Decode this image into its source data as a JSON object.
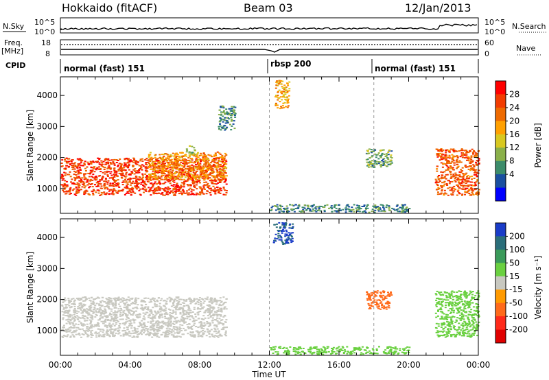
{
  "header": {
    "station": "Hokkaido (fitACF)",
    "beam": "Beam 03",
    "date": "12/Jan/2013"
  },
  "top_panels": {
    "nsky_label": "N.Sky",
    "nsky_ticks": [
      "10^5",
      "10^0"
    ],
    "nsearch_label": "N.Search",
    "nsearch_ticks": [
      "10^5",
      "10^0"
    ],
    "freq_label": "Freq.",
    "freq_unit": "[MHz]",
    "freq_ticks": [
      "18",
      "8"
    ],
    "nave_label": "Nave",
    "nave_ticks": [
      "60",
      "0"
    ],
    "cpid_label": "CPID",
    "cpid_segments": [
      {
        "label": "normal (fast) 151",
        "start": 0,
        "end": 12
      },
      {
        "label": "rbsp 200",
        "start": 12,
        "end": 18
      },
      {
        "label": "normal (fast) 151",
        "start": 18,
        "end": 24
      }
    ]
  },
  "power_colorbar": {
    "label": "Power [dB]",
    "ticks": [
      "28",
      "24",
      "20",
      "16",
      "12",
      "8",
      "4"
    ],
    "colors": [
      "#ff0000",
      "#f23c00",
      "#ee6a00",
      "#ffa000",
      "#d8c820",
      "#8ab04a",
      "#3c8c6a",
      "#1a4fa0",
      "#0000ff"
    ]
  },
  "velocity_colorbar": {
    "label": "Velocity [m s⁻¹]",
    "ticks": [
      "200",
      "100",
      "50",
      "15",
      "-15",
      "-50",
      "-100",
      "-200"
    ],
    "colors": [
      "#1a3cc8",
      "#2a6e7a",
      "#3a9a5a",
      "#6ad040",
      "#c8c8c0",
      "#ff9a00",
      "#ff6a1a",
      "#ff2a1a",
      "#e00000"
    ]
  },
  "chart_data": [
    {
      "type": "heatmap",
      "title": "Power",
      "xlabel": "Time UT",
      "ylabel": "Slant Range [km]",
      "xlim": [
        0,
        24
      ],
      "ylim": [
        200,
        4600
      ],
      "x_ticks": [
        "00:00",
        "04:00",
        "08:00",
        "12:00",
        "16:00",
        "20:00",
        "00:00"
      ],
      "y_ticks": [
        "1000",
        "2000",
        "3000",
        "4000"
      ],
      "regions": [
        {
          "t0": 0.0,
          "t1": 9.5,
          "r0": 800,
          "r1": 2000,
          "value": 28
        },
        {
          "t0": 5.0,
          "t1": 9.5,
          "r0": 1300,
          "r1": 2200,
          "value": 22
        },
        {
          "t0": 7.2,
          "t1": 7.7,
          "r0": 2100,
          "r1": 2400,
          "value": 12
        },
        {
          "t0": 12.3,
          "t1": 13.1,
          "r0": 3600,
          "r1": 4500,
          "value": 20
        },
        {
          "t0": 9.0,
          "t1": 10.0,
          "r0": 2900,
          "r1": 3700,
          "value": 8
        },
        {
          "t0": 12.0,
          "t1": 20.0,
          "r0": 250,
          "r1": 500,
          "value": 8
        },
        {
          "t0": 17.5,
          "t1": 19.0,
          "r0": 1700,
          "r1": 2300,
          "value": 10
        },
        {
          "t0": 21.5,
          "t1": 24.0,
          "r0": 800,
          "r1": 2300,
          "value": 26
        }
      ]
    },
    {
      "type": "heatmap",
      "title": "Velocity",
      "xlabel": "Time UT",
      "ylabel": "Slant Range [km]",
      "xlim": [
        0,
        24
      ],
      "ylim": [
        200,
        4600
      ],
      "x_ticks": [
        "00:00",
        "04:00",
        "08:00",
        "12:00",
        "16:00",
        "20:00",
        "00:00"
      ],
      "y_ticks": [
        "1000",
        "2000",
        "3000",
        "4000"
      ],
      "regions": [
        {
          "t0": 0.0,
          "t1": 9.5,
          "r0": 800,
          "r1": 2100,
          "value": 0
        },
        {
          "t0": 12.2,
          "t1": 13.3,
          "r0": 3800,
          "r1": 4500,
          "value": 200
        },
        {
          "t0": 12.0,
          "t1": 20.0,
          "r0": 250,
          "r1": 500,
          "value": 30
        },
        {
          "t0": 17.5,
          "t1": 19.0,
          "r0": 1700,
          "r1": 2300,
          "value": -60
        },
        {
          "t0": 21.5,
          "t1": 24.0,
          "r0": 800,
          "r1": 2300,
          "value": 30
        }
      ]
    }
  ]
}
